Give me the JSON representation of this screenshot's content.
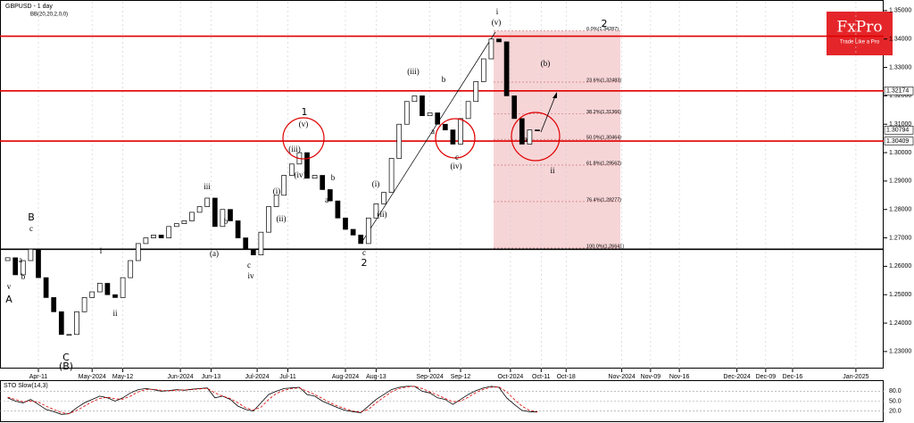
{
  "chart_data": [
    {
      "type": "candlestick",
      "title": "GBPUSD - 1 day",
      "subtitle": "BB(20,20,2,0,0)",
      "x": [
        0,
        2,
        4,
        6,
        8,
        10,
        12,
        14,
        16,
        18,
        20,
        22,
        24,
        26,
        28,
        30,
        32,
        34,
        36,
        38,
        40,
        42,
        44,
        46,
        48,
        50,
        52,
        54,
        56,
        58,
        60,
        62,
        64,
        66,
        68,
        70,
        72,
        74,
        76,
        78,
        80,
        82,
        84,
        86,
        88,
        90,
        92,
        94,
        96,
        98,
        100,
        102,
        104,
        106,
        108,
        110,
        112,
        114,
        116,
        118,
        120,
        122,
        124,
        126,
        128,
        130,
        132,
        134,
        136,
        138
      ],
      "open": [
        1.262,
        1.263,
        1.257,
        1.262,
        1.266,
        1.256,
        1.249,
        1.244,
        1.236,
        1.236,
        1.244,
        1.249,
        1.251,
        1.254,
        1.25,
        1.249,
        1.256,
        1.262,
        1.268,
        1.27,
        1.271,
        1.27,
        1.274,
        1.275,
        1.276,
        1.279,
        1.281,
        1.284,
        1.274,
        1.28,
        1.276,
        1.27,
        1.266,
        1.264,
        1.272,
        1.281,
        1.285,
        1.292,
        1.296,
        1.3,
        1.291,
        1.292,
        1.287,
        1.283,
        1.277,
        1.273,
        1.271,
        1.268,
        1.277,
        1.282,
        1.286,
        1.298,
        1.31,
        1.318,
        1.32,
        1.313,
        1.314,
        1.31,
        1.308,
        1.303,
        1.312,
        1.318,
        1.325,
        1.333,
        1.34,
        1.339,
        1.32,
        1.312,
        1.303,
        1.308
      ],
      "close": [
        1.263,
        1.257,
        1.262,
        1.266,
        1.256,
        1.249,
        1.244,
        1.236,
        1.236,
        1.244,
        1.249,
        1.251,
        1.254,
        1.25,
        1.249,
        1.256,
        1.262,
        1.268,
        1.27,
        1.271,
        1.27,
        1.274,
        1.275,
        1.276,
        1.279,
        1.281,
        1.284,
        1.274,
        1.28,
        1.276,
        1.27,
        1.266,
        1.264,
        1.272,
        1.281,
        1.285,
        1.292,
        1.296,
        1.3,
        1.291,
        1.292,
        1.287,
        1.283,
        1.277,
        1.273,
        1.271,
        1.268,
        1.277,
        1.282,
        1.286,
        1.298,
        1.31,
        1.318,
        1.32,
        1.313,
        1.314,
        1.31,
        1.308,
        1.303,
        1.312,
        1.318,
        1.325,
        1.333,
        1.34,
        1.339,
        1.32,
        1.312,
        1.303,
        1.308,
        1.3079
      ],
      "up_color": "#ffffff",
      "down_color": "#000000",
      "xlim": [
        -2,
        228.23
      ],
      "xticks": [
        {
          "value": 8,
          "label": "Apr-11"
        },
        {
          "value": 22,
          "label": "May-2024"
        },
        {
          "value": 30,
          "label": "May-12"
        },
        {
          "value": 45,
          "label": "Jun-2024"
        },
        {
          "value": 53,
          "label": "Jun-13"
        },
        {
          "value": 65,
          "label": "Jul-2024"
        },
        {
          "value": 73,
          "label": "Jul-11"
        },
        {
          "value": 88,
          "label": "Aug-2024"
        },
        {
          "value": 96,
          "label": "Aug-13"
        },
        {
          "value": 110,
          "label": "Sep-2024"
        },
        {
          "value": 118,
          "label": "Sep-12"
        },
        {
          "value": 131,
          "label": "Oct-2024"
        },
        {
          "value": 139,
          "label": "Oct-11"
        },
        {
          "value": 145.5,
          "label": "Oct-18"
        },
        {
          "value": 160,
          "label": "Nov-2024"
        },
        {
          "value": 167.5,
          "label": "Nov-09"
        },
        {
          "value": 175,
          "label": "Nov-16"
        },
        {
          "value": 190,
          "label": "Dec-2024"
        },
        {
          "value": 197.5,
          "label": "Dec-09"
        },
        {
          "value": 204.5,
          "label": "Dec-16"
        },
        {
          "value": 221,
          "label": "Jan-2025"
        }
      ],
      "ylim": [
        1.224,
        1.3531
      ],
      "yticks": [
        {
          "value": 1.35,
          "label": "1.35000"
        },
        {
          "value": 1.34,
          "label": "1.34000"
        },
        {
          "value": 1.33,
          "label": "1.33000"
        },
        {
          "value": 1.32,
          "label": "1.32000"
        },
        {
          "value": 1.31,
          "label": "1.31000"
        },
        {
          "value": 1.3,
          "label": "1.30000"
        },
        {
          "value": 1.29,
          "label": "1.29000"
        },
        {
          "value": 1.28,
          "label": "1.28000"
        },
        {
          "value": 1.27,
          "label": "1.27000"
        },
        {
          "value": 1.26,
          "label": "1.26000"
        },
        {
          "value": 1.25,
          "label": "1.25000"
        },
        {
          "value": 1.24,
          "label": "1.24000"
        },
        {
          "value": 1.23,
          "label": "1.23000"
        }
      ],
      "hlines": [
        {
          "value": 1.341,
          "color": "#e00000"
        },
        {
          "value": 1.32174,
          "color": "#e00000"
        },
        {
          "value": 1.30409,
          "color": "#e00000"
        },
        {
          "value": 1.266,
          "color": "#000000"
        }
      ],
      "price_labels": [
        {
          "value": 1.32174,
          "label": "1.32174"
        },
        {
          "value": 1.30794,
          "label": "1.30794"
        },
        {
          "value": 1.30409,
          "label": "1.30409"
        }
      ],
      "fib_levels": [
        {
          "value": 1.34287,
          "label": "0.0%(1.34287)"
        },
        {
          "value": 1.32483,
          "label": "23.6%(1.32483)"
        },
        {
          "value": 1.31366,
          "label": "38.2%(1.31366)"
        },
        {
          "value": 1.30464,
          "label": "50.0%(1.30464)"
        },
        {
          "value": 1.29562,
          "label": "61.8%(1.29562)"
        },
        {
          "value": 1.28277,
          "label": "76.4%(1.28277)"
        },
        {
          "value": 1.26641,
          "label": "100.0%(1.26641)"
        }
      ],
      "annotations": [
        "A",
        "B",
        "C",
        "(B)",
        "1",
        "2",
        "(v)",
        "(iii)",
        "(iv)",
        "(i)",
        "(ii)",
        "iii",
        "(a)",
        "b",
        "c",
        "iv",
        "a",
        "b",
        "c",
        "v",
        "i",
        "ii",
        "(i)",
        "(ii)",
        "a",
        "b",
        "c",
        "(iii)",
        "b",
        "a",
        "c",
        "(iv)",
        "(v)",
        "i",
        "(b)",
        "a",
        "ii",
        "2"
      ],
      "logo": {
        "name": "FxPro",
        "tagline": "Trade Like a Pro"
      }
    },
    {
      "type": "line",
      "title": "STO Slow(14,3)",
      "x": [
        0,
        2,
        4,
        6,
        8,
        10,
        12,
        14,
        16,
        18,
        20,
        22,
        24,
        26,
        28,
        30,
        32,
        34,
        36,
        38,
        40,
        42,
        44,
        46,
        48,
        50,
        52,
        54,
        56,
        58,
        60,
        62,
        64,
        66,
        68,
        70,
        72,
        74,
        76,
        78,
        80,
        82,
        84,
        86,
        88,
        90,
        92,
        94,
        96,
        98,
        100,
        102,
        104,
        106,
        108,
        110,
        112,
        114,
        116,
        118,
        120,
        122,
        124,
        126,
        128,
        130,
        132,
        134,
        136,
        138
      ],
      "series": [
        {
          "color": "#000000",
          "values": [
            60,
            50,
            45,
            55,
            40,
            25,
            18,
            10,
            12,
            30,
            45,
            55,
            65,
            60,
            50,
            60,
            75,
            85,
            88,
            85,
            80,
            82,
            85,
            83,
            86,
            88,
            90,
            60,
            65,
            55,
            35,
            25,
            20,
            45,
            70,
            80,
            88,
            90,
            92,
            70,
            65,
            50,
            40,
            30,
            22,
            18,
            15,
            35,
            55,
            70,
            85,
            92,
            95,
            95,
            80,
            75,
            60,
            55,
            40,
            55,
            70,
            82,
            90,
            95,
            92,
            60,
            40,
            22,
            18,
            17
          ]
        },
        {
          "color": "#e00000",
          "values": [
            62,
            55,
            48,
            50,
            47,
            35,
            25,
            15,
            12,
            22,
            35,
            48,
            58,
            62,
            57,
            56,
            65,
            78,
            85,
            86,
            83,
            81,
            83,
            84,
            85,
            87,
            89,
            75,
            65,
            58,
            45,
            30,
            23,
            32,
            55,
            73,
            83,
            88,
            90,
            80,
            70,
            58,
            45,
            35,
            27,
            20,
            17,
            25,
            45,
            62,
            78,
            88,
            93,
            95,
            88,
            78,
            68,
            58,
            48,
            50,
            62,
            76,
            86,
            92,
            93,
            78,
            55,
            35,
            22,
            18
          ]
        }
      ],
      "xlim": [
        -2,
        228.23
      ],
      "ylim": [
        0,
        100
      ],
      "yticks": [
        {
          "value": 80,
          "label": "80.0"
        },
        {
          "value": 50,
          "label": "50.0"
        },
        {
          "value": 20,
          "label": "20.0"
        }
      ]
    }
  ]
}
